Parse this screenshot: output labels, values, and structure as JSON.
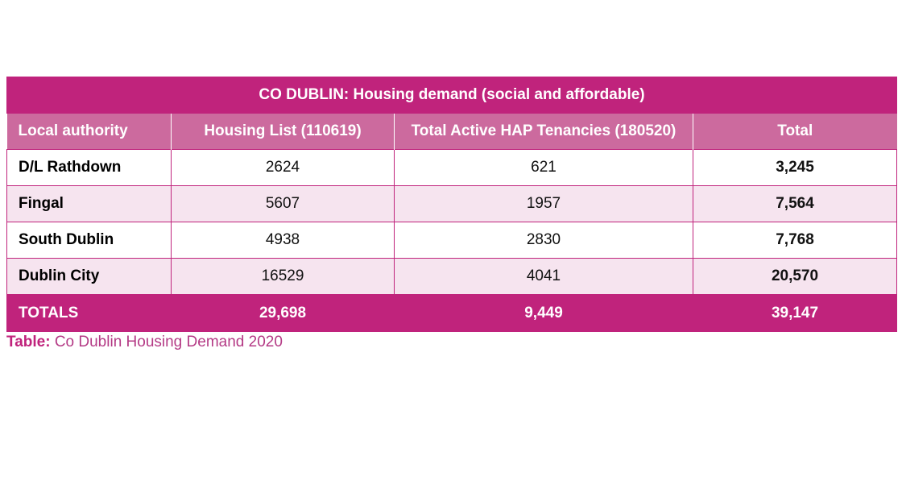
{
  "table": {
    "title": "CO DUBLIN: Housing demand (social and affordable)",
    "headers": [
      "Local authority",
      "Housing List (110619)",
      "Total Active HAP Tenancies (180520)",
      "Total"
    ],
    "rows": [
      [
        "D/L Rathdown",
        "2624",
        "621",
        "3,245"
      ],
      [
        "Fingal",
        "5607",
        "1957",
        "7,564"
      ],
      [
        "South Dublin",
        "4938",
        "2830",
        "7,768"
      ],
      [
        "Dublin City",
        "16529",
        "4041",
        "20,570"
      ]
    ],
    "totals": [
      "TOTALS",
      "29,698",
      "9,449",
      "39,147"
    ]
  },
  "caption": {
    "label": "Table:",
    "text": "Co Dublin Housing Demand 2020"
  },
  "colors": {
    "primary": "#c0237c",
    "header": "#cc6a9e",
    "alt_row": "#f6e4ef"
  }
}
